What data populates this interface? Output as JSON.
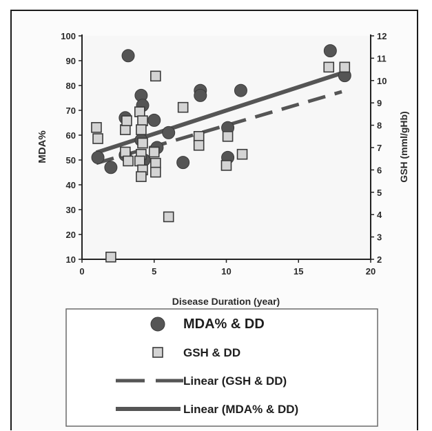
{
  "chart_data": {
    "type": "scatter",
    "xlabel": "Disease Duration (year)",
    "ylabel_left": "MDA%",
    "ylabel_right": "GSH (mml/gHb)",
    "xlim": [
      0,
      20
    ],
    "ylim_left": [
      10,
      100
    ],
    "ylim_right": [
      2,
      12
    ],
    "x_ticks": [
      0,
      5,
      10,
      15,
      20
    ],
    "y_left_ticks": [
      10,
      20,
      30,
      40,
      50,
      60,
      70,
      80,
      90,
      100
    ],
    "y_right_ticks": [
      2,
      3,
      4,
      5,
      6,
      7,
      8,
      9,
      10,
      11,
      12
    ],
    "grid": false,
    "legend_position": "bottom",
    "colors": {
      "circle_fill": "#555555",
      "square_fill": "#d4d4d4",
      "marker_stroke": "#3a3a3a",
      "trend": "#555555"
    },
    "series": [
      {
        "name": "MDA% & DD",
        "marker": "circle",
        "axis": "left",
        "points": [
          [
            1.1,
            51
          ],
          [
            2.0,
            47
          ],
          [
            3.0,
            67
          ],
          [
            3.0,
            52
          ],
          [
            3.2,
            92
          ],
          [
            4.1,
            76
          ],
          [
            4.2,
            72
          ],
          [
            4.1,
            58
          ],
          [
            4.3,
            50
          ],
          [
            5.0,
            66
          ],
          [
            5.2,
            55
          ],
          [
            6.0,
            61
          ],
          [
            7.0,
            49
          ],
          [
            8.2,
            78
          ],
          [
            8.2,
            76
          ],
          [
            10.1,
            63
          ],
          [
            10.1,
            51
          ],
          [
            11.0,
            78
          ],
          [
            17.2,
            94
          ],
          [
            18.2,
            84
          ]
        ]
      },
      {
        "name": "GSH & DD",
        "marker": "square",
        "axis": "right",
        "points": [
          [
            1.0,
            7.9
          ],
          [
            1.1,
            7.4
          ],
          [
            2.0,
            2.1
          ],
          [
            3.0,
            7.8
          ],
          [
            3.1,
            8.2
          ],
          [
            3.0,
            6.8
          ],
          [
            3.2,
            6.4
          ],
          [
            4.0,
            8.6
          ],
          [
            4.2,
            8.2
          ],
          [
            4.1,
            7.8
          ],
          [
            4.2,
            7.2
          ],
          [
            4.1,
            6.7
          ],
          [
            4.0,
            6.4
          ],
          [
            4.2,
            6.0
          ],
          [
            4.1,
            5.7
          ],
          [
            5.1,
            10.2
          ],
          [
            5.0,
            6.8
          ],
          [
            5.1,
            6.3
          ],
          [
            5.1,
            5.9
          ],
          [
            6.0,
            3.9
          ],
          [
            7.0,
            8.8
          ],
          [
            8.1,
            7.5
          ],
          [
            8.1,
            7.1
          ],
          [
            10.1,
            7.5
          ],
          [
            10.0,
            6.2
          ],
          [
            11.1,
            6.7
          ],
          [
            17.1,
            10.6
          ],
          [
            18.2,
            10.6
          ]
        ]
      }
    ],
    "trendlines": [
      {
        "name": "Linear (GSH & DD)",
        "style": "dashed",
        "axis": "right",
        "x": [
          1,
          18
        ],
        "y": [
          6.3,
          9.5
        ]
      },
      {
        "name": "Linear (MDA% & DD)",
        "style": "solid",
        "axis": "left",
        "x": [
          1,
          18
        ],
        "y": [
          53,
          85
        ]
      }
    ],
    "legend": [
      {
        "label": "MDA% & DD",
        "symbol": "circle"
      },
      {
        "label": "GSH & DD",
        "symbol": "square"
      },
      {
        "label": "Linear (GSH & DD)",
        "symbol": "dashed-line"
      },
      {
        "label": "Linear (MDA% & DD)",
        "symbol": "solid-line"
      }
    ]
  }
}
